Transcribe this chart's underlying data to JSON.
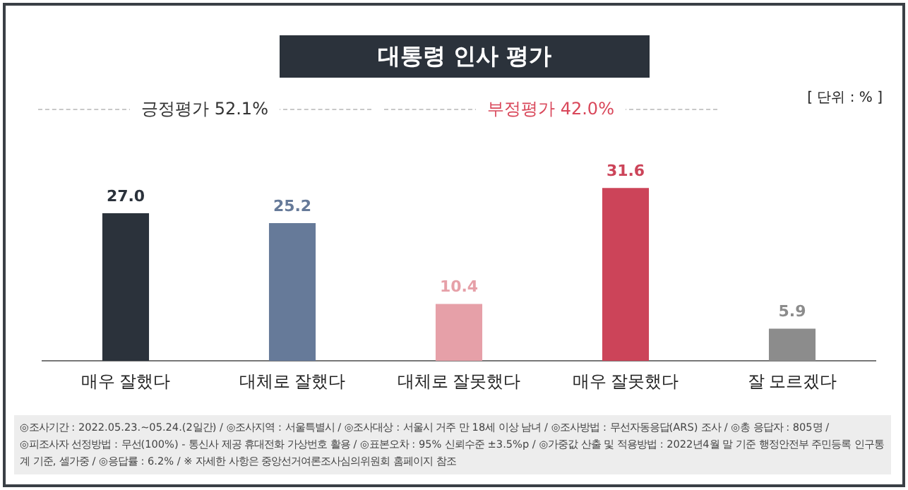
{
  "chart_data": {
    "type": "bar",
    "title": "대통령 인사 평가",
    "categories": [
      "매우 잘했다",
      "대체로 잘했다",
      "대체로 잘못했다",
      "매우 잘못했다",
      "잘 모르겠다"
    ],
    "values": [
      27.0,
      25.2,
      10.4,
      31.6,
      5.9
    ],
    "colors": [
      "#2b323b",
      "#667a99",
      "#e6a0a8",
      "#cc4459",
      "#8c8c8c"
    ],
    "value_labels": [
      "27.0",
      "25.2",
      "10.4",
      "31.6",
      "5.9"
    ],
    "grid": false,
    "legend": false,
    "annotations": [
      "[ 단위 : % ]",
      "긍정평가 52.1%",
      "부정평가 42.0%",
      "◎조사기간 : 2022.05.23.~05.24.(2일간) / ◎조사지역 : 서울특별시 / ◎조사대상 : 서울시 거주 만 18세 이상 남녀 / ◎조사방법 : 무선자동응답(ARS) 조사 / ◎총 응답자 : 805명 /",
      "◎피조사자 선정방법 : 무선(100%) - 통신사 제공 휴대전화 가상번호 활용 / ◎표본오차 : 95% 신뢰수준 ±3.5%p / ◎가중값 산출 및 적용방법 : 2022년4월 말 기준 행정안전부 주민등록 인구통계 기준, 셀가중 / ◎응답률 : 6.2% / ※ 자세한 사항은 중앙선거여론조사심의위원회 홈페이지 참조"
    ]
  }
}
